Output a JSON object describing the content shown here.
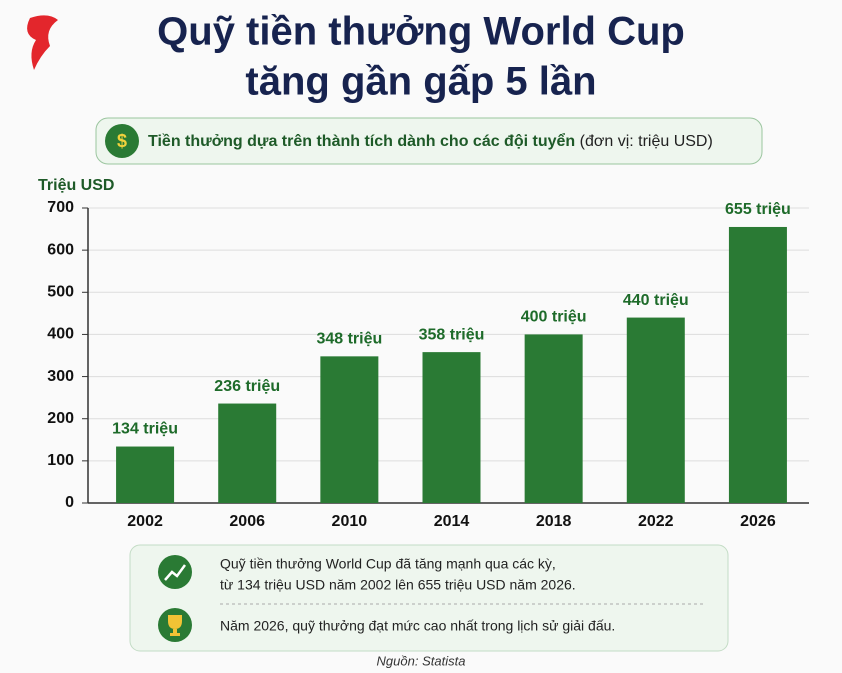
{
  "chart_data": {
    "type": "bar",
    "title": [
      "Quỹ tiền thưởng World Cup",
      "tăng gần gấp 5 lần"
    ],
    "subtitle": "Tiền thưởng dựa trên thành tích dành cho các đội tuyển",
    "unit_note": "(đơn vị: triệu USD)",
    "y_label": "Triệu USD",
    "categories": [
      "2002",
      "2006",
      "2010",
      "2014",
      "2018",
      "2022",
      "2026"
    ],
    "values": [
      134,
      236,
      348,
      358,
      400,
      440,
      655
    ],
    "value_labels": [
      "134 triệu",
      "236 triệu",
      "348 triệu",
      "358 triệu",
      "400 triệu",
      "440 triệu",
      "655 triệu"
    ],
    "color": "#2a7a34",
    "ylim": [
      0,
      700
    ],
    "yticks": [
      0,
      100,
      200,
      300,
      400,
      500,
      600,
      700
    ],
    "grid": true,
    "notes": [
      [
        "Quỹ tiền thưởng World Cup đã tăng mạnh qua các kỳ,",
        "từ 134 triệu USD năm 2002 lên 655 triệu USD năm 2026."
      ],
      [
        "Năm 2026, quỹ thưởng đạt mức cao nhất trong lịch sử giải đấu."
      ]
    ],
    "source": "Nguồn: Statista"
  }
}
